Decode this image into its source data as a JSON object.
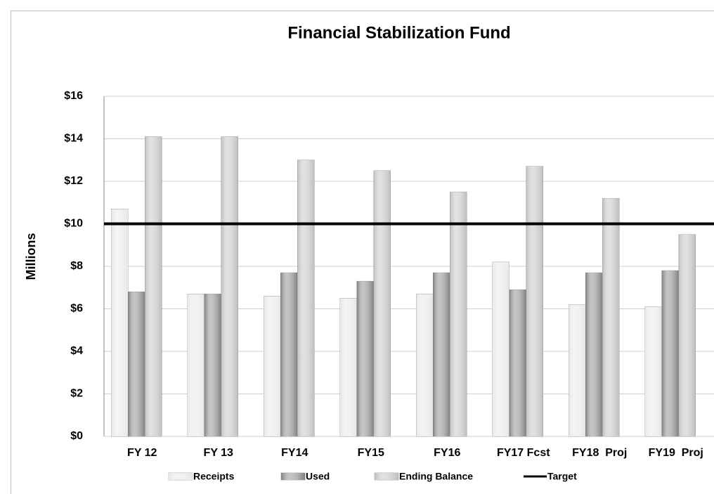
{
  "chart_data": {
    "type": "bar",
    "title": "Financial Stabilization Fund",
    "y_label": "Millions",
    "categories": [
      "FY 12",
      "FY 13",
      "FY14",
      "FY15",
      "FY16",
      "FY17 Fcst",
      "FY18  Proj",
      "FY19  Proj"
    ],
    "series": [
      {
        "name": "Receipts",
        "color": "#e6e6e6",
        "values": [
          10.7,
          6.7,
          6.6,
          6.5,
          6.7,
          8.2,
          6.2,
          6.1
        ]
      },
      {
        "name": "Used",
        "color": "#7f7f7f",
        "values": [
          6.8,
          6.7,
          7.7,
          7.3,
          7.7,
          6.9,
          7.7,
          7.8
        ]
      },
      {
        "name": "Ending Balance",
        "color": "#bdbdbd",
        "values": [
          14.1,
          14.1,
          13.0,
          12.5,
          11.5,
          12.7,
          11.2,
          9.5
        ]
      }
    ],
    "target": {
      "name": "Target",
      "value": 10,
      "color": "#000000"
    },
    "ylim": [
      0,
      16
    ],
    "yticks": [
      {
        "value": 0,
        "label": "$0"
      },
      {
        "value": 2,
        "label": "$2"
      },
      {
        "value": 4,
        "label": "$4"
      },
      {
        "value": 6,
        "label": "$6"
      },
      {
        "value": 8,
        "label": "$8"
      },
      {
        "value": 10,
        "label": "$10"
      },
      {
        "value": 12,
        "label": "$12"
      },
      {
        "value": 14,
        "label": "$14"
      },
      {
        "value": 16,
        "label": "$16"
      }
    ],
    "grid": true
  }
}
